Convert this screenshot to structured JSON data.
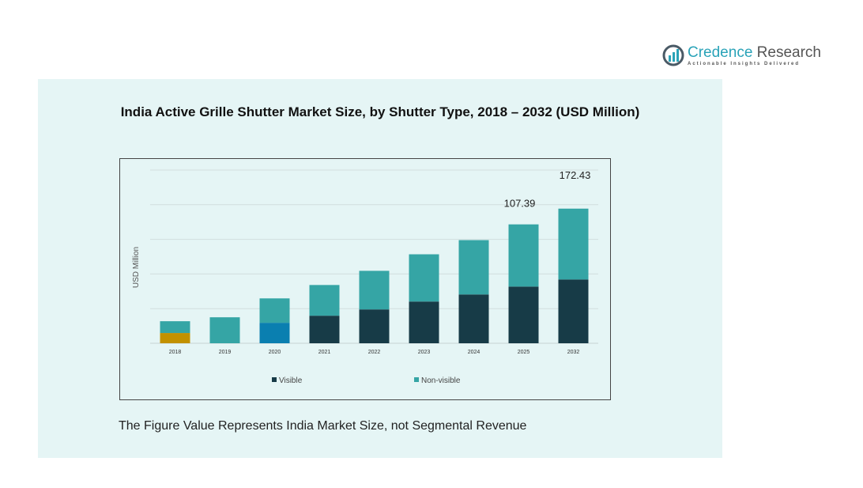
{
  "logo": {
    "name_part1": "Credence",
    "name_part2": " Research",
    "tagline": "Actionable Insights Delivered"
  },
  "footnote": "The Figure Value Represents India Market Size,  not Segmental Revenue",
  "chart_data": {
    "type": "bar",
    "stacked": true,
    "title": "India Active Grille Shutter Market Size, by Shutter Type, 2018 – 2032 (USD Million)",
    "ylabel": "USD Million",
    "xlabel": "",
    "ylim": [
      0,
      220
    ],
    "grid": true,
    "legend_position": "bottom",
    "categories": [
      "2018",
      "2019",
      "2020",
      "2021",
      "2022",
      "2023",
      "2024",
      "2025",
      "2032"
    ],
    "series": [
      {
        "name": "Visible",
        "color": "#173b47",
        "values": [
          13,
          0,
          26,
          35,
          43,
          53,
          62,
          72,
          81
        ],
        "point_colors": {
          "0": "#c29100",
          "2": "#0a7fb0"
        }
      },
      {
        "name": "Non-visible",
        "color": "#35a5a5",
        "values": [
          15,
          33,
          31,
          39,
          49,
          60,
          69,
          79,
          90
        ]
      }
    ],
    "data_labels": {
      "7": "107.39",
      "8": "172.43"
    }
  }
}
